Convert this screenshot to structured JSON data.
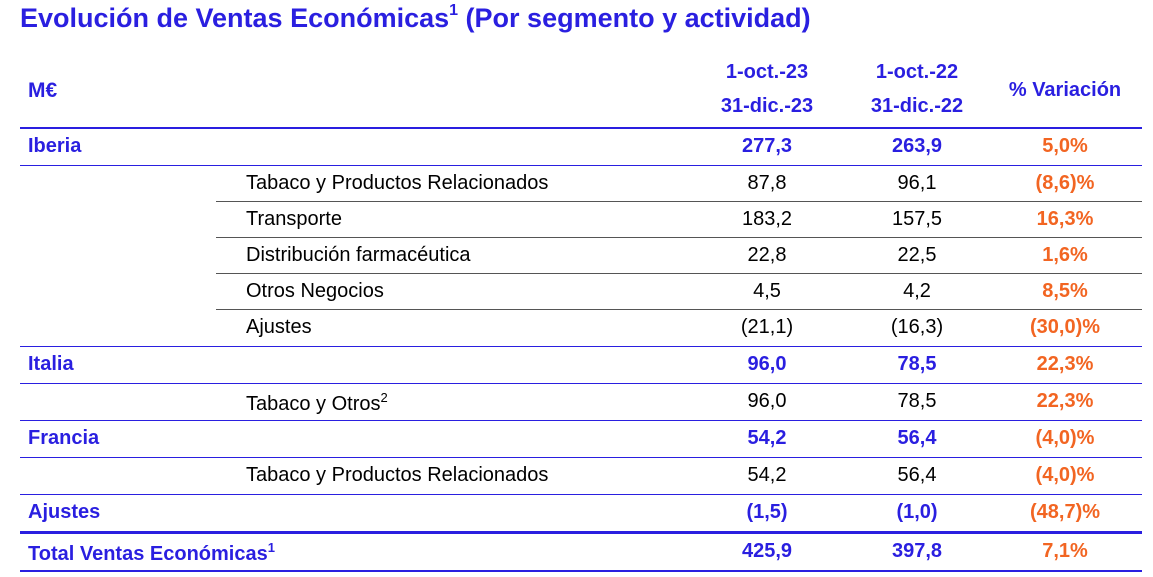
{
  "title": "Evolución de Ventas Económicas",
  "title_sup": "1",
  "title_suffix": " (Por segmento y actividad)",
  "header": {
    "unit": "M€",
    "period1_line1": "1-oct.-23",
    "period1_line2": "31-dic.-23",
    "period2_line1": "1-oct.-22",
    "period2_line2": "31-dic.-22",
    "variation": "% Variación"
  },
  "rows": [
    {
      "type": "seg",
      "label": "Iberia",
      "v1": "277,3",
      "v2": "263,9",
      "var": "5,0%"
    },
    {
      "type": "sub",
      "label": "Tabaco y Productos Relacionados",
      "v1": "87,8",
      "v2": "96,1",
      "var": "(8,6)%"
    },
    {
      "type": "sub",
      "label": "Transporte",
      "v1": "183,2",
      "v2": "157,5",
      "var": "16,3%"
    },
    {
      "type": "sub",
      "label": "Distribución farmacéutica",
      "v1": "22,8",
      "v2": "22,5",
      "var": "1,6%"
    },
    {
      "type": "sub",
      "label": "Otros Negocios",
      "v1": "4,5",
      "v2": "4,2",
      "var": "8,5%"
    },
    {
      "type": "sub",
      "label": "Ajustes",
      "v1": "(21,1)",
      "v2": "(16,3)",
      "var": "(30,0)%"
    },
    {
      "type": "seg",
      "label": "Italia",
      "v1": "96,0",
      "v2": "78,5",
      "var": "22,3%"
    },
    {
      "type": "sub",
      "label": "Tabaco y Otros",
      "sup": "2",
      "v1": "96,0",
      "v2": "78,5",
      "var": "22,3%"
    },
    {
      "type": "seg",
      "label": "Francia",
      "v1": "54,2",
      "v2": "56,4",
      "var": "(4,0)%"
    },
    {
      "type": "sub",
      "label": "Tabaco y Productos Relacionados",
      "v1": "54,2",
      "v2": "56,4",
      "var": "(4,0)%"
    },
    {
      "type": "seg",
      "label": "Ajustes",
      "v1": "(1,5)",
      "v2": "(1,0)",
      "var": "(48,7)%"
    },
    {
      "type": "seg",
      "label": "Total Ventas Económicas",
      "sup": "1",
      "v1": "425,9",
      "v2": "397,8",
      "var": "7,1%"
    }
  ],
  "colors": {
    "accent": "#2a1fe0",
    "variation": "#f26522"
  }
}
